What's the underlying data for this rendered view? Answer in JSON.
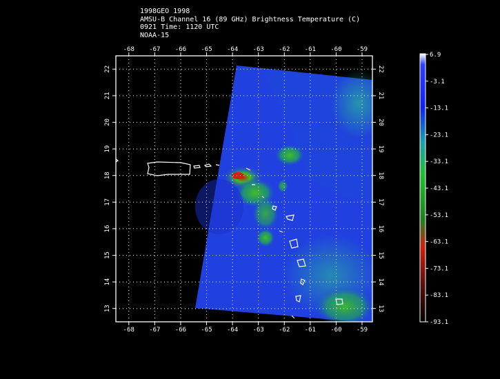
{
  "header": {
    "line1": "1998GEO 1998",
    "line2": "AMSU-B Channel 16 (89 GHz) Brightness Temperature (C)",
    "line3": "0921 Time: 1120 UTC",
    "line4": "NOAA-15"
  },
  "map": {
    "lon_range": [
      -68.5,
      -58.6
    ],
    "lat_range": [
      12.5,
      22.5
    ],
    "lon_ticks": [
      "-68",
      "-67",
      "-66",
      "-65",
      "-64",
      "-63",
      "-62",
      "-61",
      "-60",
      "-59"
    ],
    "lat_ticks": [
      "13",
      "14",
      "15",
      "16",
      "17",
      "18",
      "19",
      "20",
      "21",
      "22"
    ],
    "grid": true,
    "background": "#000000",
    "coastline_color": "#ffffff"
  },
  "colorbar": {
    "labels": [
      "6.9",
      "-3.1",
      "-13.1",
      "-23.1",
      "-33.1",
      "-43.1",
      "-53.1",
      "-63.1",
      "-73.1",
      "-83.1",
      "-93.1"
    ],
    "colors": [
      "#ffffff",
      "#1e2ad6",
      "#1020ff",
      "#1aa0b0",
      "#1ac030",
      "#20a020",
      "#2a8a18",
      "#d02010",
      "#701010",
      "#300808",
      "#000000"
    ]
  }
}
